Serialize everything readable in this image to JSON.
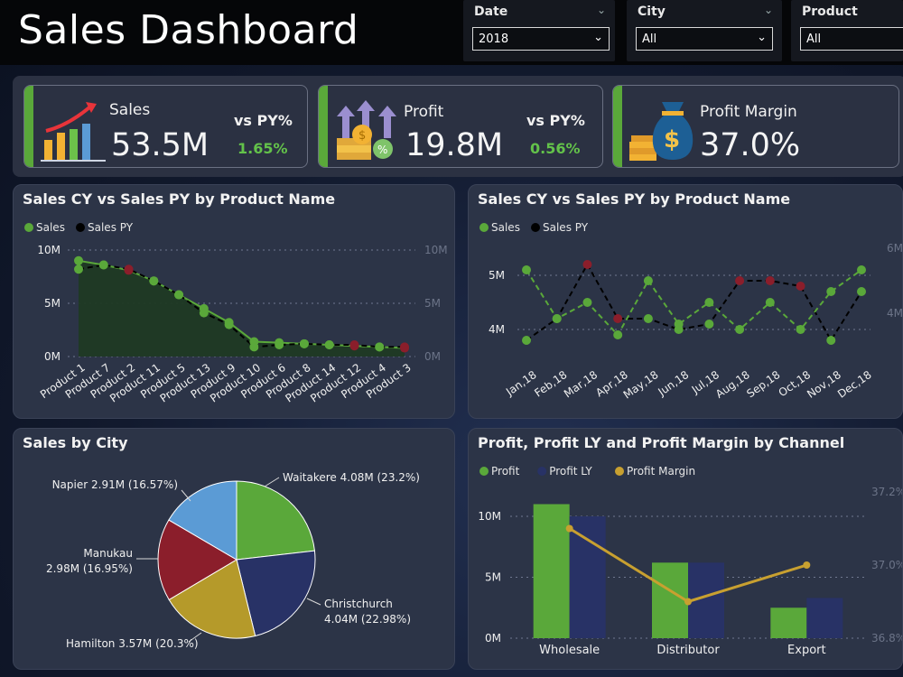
{
  "header": {
    "title": "Sales Dashboard",
    "slicers": [
      {
        "label": "Date",
        "value": "2018"
      },
      {
        "label": "City",
        "value": "All"
      },
      {
        "label": "Product",
        "value": "All"
      }
    ]
  },
  "kpis": [
    {
      "name": "Sales",
      "value": "53.5M",
      "vs_label": "vs PY%",
      "vs_value": "1.65%",
      "icon": "bar-growth-icon"
    },
    {
      "name": "Profit",
      "value": "19.8M",
      "vs_label": "vs PY%",
      "vs_value": "0.56%",
      "icon": "coins-arrows-icon"
    },
    {
      "name": "Profit Margin",
      "value": "37.0%",
      "icon": "money-bag-icon"
    }
  ],
  "colors": {
    "green": "#5aa83a",
    "dark_red": "#8b1e2b",
    "navy": "#283266",
    "steel_blue": "#5b9bd5",
    "olive": "#b59a2a",
    "gold": "#c8a030",
    "area_fill": "#1f3a24"
  },
  "chart_data": [
    {
      "type": "line",
      "title": "Sales CY vs Sales PY by Product Name",
      "legend": [
        "Sales",
        "Sales PY"
      ],
      "categories": [
        "Product 1",
        "Product 7",
        "Product 2",
        "Product 11",
        "Product 5",
        "Product 13",
        "Product 9",
        "Product 10",
        "Product 6",
        "Product 8",
        "Product 14",
        "Product 12",
        "Product 4",
        "Product 3"
      ],
      "series": [
        {
          "name": "Sales",
          "values": [
            9.0,
            8.6,
            8.1,
            7.1,
            5.8,
            4.5,
            3.2,
            1.4,
            1.3,
            1.2,
            1.1,
            1.0,
            0.9,
            0.8
          ]
        },
        {
          "name": "Sales PY",
          "values": [
            8.2,
            8.6,
            8.2,
            7.1,
            5.8,
            4.1,
            3.0,
            0.9,
            1.1,
            1.2,
            1.1,
            1.1,
            0.9,
            0.9
          ]
        }
      ],
      "yticks": [
        "10M",
        "5M",
        "0M"
      ],
      "y2ticks": [
        "10M",
        "5M",
        "0M"
      ],
      "ylim": [
        0,
        10
      ]
    },
    {
      "type": "line",
      "title": "Sales CY vs Sales PY by Product Name",
      "legend": [
        "Sales",
        "Sales PY"
      ],
      "categories": [
        "Jan,18",
        "Feb,18",
        "Mar,18",
        "Apr,18",
        "May,18",
        "Jun,18",
        "Jul,18",
        "Aug,18",
        "Sep,18",
        "Oct,18",
        "Nov,18",
        "Dec,18"
      ],
      "series": [
        {
          "name": "Sales",
          "values": [
            5.1,
            4.2,
            4.5,
            3.9,
            4.9,
            4.1,
            4.5,
            4.0,
            4.5,
            4.0,
            4.7,
            5.1
          ]
        },
        {
          "name": "Sales PY",
          "values": [
            3.8,
            4.2,
            5.2,
            4.2,
            4.2,
            4.0,
            4.1,
            4.9,
            4.9,
            4.8,
            3.8,
            4.7
          ]
        }
      ],
      "yticks": [
        "5M",
        "4M"
      ],
      "y2ticks": [
        "6M",
        "4M"
      ],
      "ylim": [
        3.5,
        5.5
      ]
    },
    {
      "type": "pie",
      "title": "Sales by City",
      "slices": [
        {
          "label": "Waitakere 4.08M (23.2%)",
          "value": 23.2
        },
        {
          "label": "Christchurch 4.04M (22.98%)",
          "value": 22.98
        },
        {
          "label": "Hamilton 3.57M (20.3%)",
          "value": 20.3
        },
        {
          "label": "Manukau 2.98M (16.95%)",
          "value": 16.95
        },
        {
          "label": "Napier 2.91M (16.57%)",
          "value": 16.57
        }
      ]
    },
    {
      "type": "bar",
      "title": "Profit, Profit LY and Profit Margin by Channel",
      "legend": [
        "Profit",
        "Profit LY",
        "Profit Margin"
      ],
      "categories": [
        "Wholesale",
        "Distributor",
        "Export"
      ],
      "series": [
        {
          "name": "Profit",
          "values": [
            11.0,
            6.2,
            2.5
          ]
        },
        {
          "name": "Profit LY",
          "values": [
            10.0,
            6.2,
            3.3
          ]
        },
        {
          "name": "Profit Margin",
          "values": [
            37.1,
            36.9,
            37.0
          ]
        }
      ],
      "yticks": [
        "10M",
        "5M",
        "0M"
      ],
      "y2ticks": [
        "37.2%",
        "37.0%",
        "36.8%"
      ],
      "ylim": [
        0,
        12
      ],
      "y2lim": [
        36.8,
        37.2
      ]
    }
  ]
}
